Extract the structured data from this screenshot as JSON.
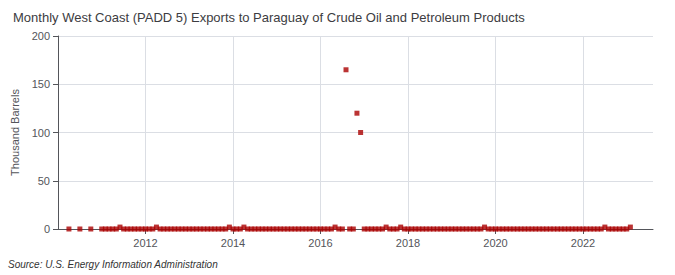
{
  "chart_data": {
    "type": "scatter",
    "title": "Monthly West Coast (PADD 5) Exports to Paraguay of Crude Oil and Petroleum Products",
    "ylabel": "Thousand Barrels",
    "annotation": "Source: U.S. Energy Information Administration",
    "color": "#aa0000",
    "marker": "square",
    "grid": true,
    "xlim": [
      2010.0,
      2023.6
    ],
    "xticks": [
      2012,
      2014,
      2016,
      2018,
      2020,
      2022
    ],
    "ylim": [
      0,
      200
    ],
    "yticks": [
      0,
      50,
      100,
      150,
      200
    ],
    "x": [
      2010.25,
      2010.5,
      2010.75,
      2011.0,
      2011.083,
      2011.167,
      2011.25,
      2011.333,
      2011.417,
      2011.5,
      2011.583,
      2011.667,
      2011.75,
      2011.833,
      2011.917,
      2012.0,
      2012.083,
      2012.167,
      2012.25,
      2012.333,
      2012.417,
      2012.5,
      2012.583,
      2012.667,
      2012.75,
      2012.833,
      2012.917,
      2013.0,
      2013.083,
      2013.167,
      2013.25,
      2013.333,
      2013.417,
      2013.5,
      2013.583,
      2013.667,
      2013.75,
      2013.833,
      2013.917,
      2014.0,
      2014.083,
      2014.167,
      2014.25,
      2014.333,
      2014.417,
      2014.5,
      2014.583,
      2014.667,
      2014.75,
      2014.833,
      2014.917,
      2015.0,
      2015.083,
      2015.167,
      2015.25,
      2015.333,
      2015.417,
      2015.5,
      2015.583,
      2015.667,
      2015.75,
      2015.833,
      2015.917,
      2016.0,
      2016.083,
      2016.167,
      2016.25,
      2016.333,
      2016.417,
      2016.5,
      2016.583,
      2016.667,
      2016.75,
      2016.833,
      2016.917,
      2017.0,
      2017.083,
      2017.167,
      2017.25,
      2017.333,
      2017.417,
      2017.5,
      2017.583,
      2017.667,
      2017.75,
      2017.833,
      2017.917,
      2018.0,
      2018.083,
      2018.167,
      2018.25,
      2018.333,
      2018.417,
      2018.5,
      2018.583,
      2018.667,
      2018.75,
      2018.833,
      2018.917,
      2019.0,
      2019.083,
      2019.167,
      2019.25,
      2019.333,
      2019.417,
      2019.5,
      2019.583,
      2019.667,
      2019.75,
      2019.833,
      2019.917,
      2020.0,
      2020.083,
      2020.167,
      2020.25,
      2020.333,
      2020.417,
      2020.5,
      2020.583,
      2020.667,
      2020.75,
      2020.833,
      2020.917,
      2021.0,
      2021.083,
      2021.167,
      2021.25,
      2021.333,
      2021.417,
      2021.5,
      2021.583,
      2021.667,
      2021.75,
      2021.833,
      2021.917,
      2022.0,
      2022.083,
      2022.167,
      2022.25,
      2022.333,
      2022.417,
      2022.5,
      2022.583,
      2022.667,
      2022.75,
      2022.833,
      2022.917,
      2023.0,
      2023.083
    ],
    "values": [
      0,
      0,
      0,
      0,
      0,
      0,
      0,
      0,
      2,
      0,
      0,
      0,
      0,
      0,
      0,
      0,
      0,
      0,
      2,
      0,
      0,
      0,
      0,
      0,
      0,
      0,
      0,
      0,
      0,
      0,
      0,
      0,
      0,
      0,
      0,
      0,
      0,
      0,
      2,
      0,
      0,
      0,
      2,
      0,
      0,
      0,
      0,
      0,
      0,
      0,
      0,
      0,
      0,
      0,
      0,
      0,
      0,
      0,
      0,
      0,
      0,
      0,
      0,
      0,
      0,
      0,
      0,
      2,
      0,
      0,
      165,
      0,
      0,
      120,
      100,
      0,
      0,
      0,
      0,
      0,
      0,
      2,
      0,
      0,
      0,
      2,
      0,
      0,
      0,
      0,
      0,
      0,
      0,
      0,
      0,
      0,
      0,
      0,
      0,
      0,
      0,
      0,
      0,
      0,
      0,
      0,
      0,
      0,
      2,
      0,
      0,
      0,
      0,
      0,
      0,
      0,
      0,
      0,
      0,
      0,
      0,
      0,
      0,
      0,
      0,
      0,
      0,
      0,
      0,
      0,
      0,
      0,
      0,
      0,
      0,
      0,
      0,
      0,
      0,
      0,
      0,
      2,
      0,
      0,
      0,
      0,
      0,
      0,
      2
    ]
  }
}
